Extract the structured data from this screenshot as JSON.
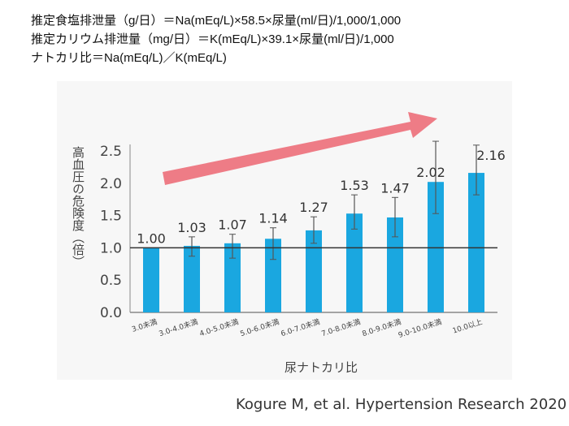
{
  "formulas": [
    "推定食塩排泄量（g/日）＝Na(mEq/L)×58.5×尿量(ml/日)/1,000/1,000",
    "推定カリウム排泄量（mg/日）＝K(mEq/L)×39.1×尿量(ml/日)/1,000",
    "ナトカリ比＝Na(mEq/L)／K(mEq/L)"
  ],
  "citation": "Kogure M, et al. Hypertension Research 2020",
  "colors": {
    "bar": "#1aa7e0",
    "arrow": "#ee7c86"
  },
  "chart_data": {
    "type": "bar",
    "title": "",
    "xlabel": "尿ナトカリ比",
    "ylabel": "高血圧の危険度（倍）",
    "ylim": [
      0,
      2.5
    ],
    "yticks": [
      "0.0",
      "0.5",
      "1.0",
      "1.5",
      "2.0",
      "2.5"
    ],
    "reference_line": 1.0,
    "categories": [
      "3.0未満",
      "3.0-4.0未満",
      "4.0-5.0未満",
      "5.0-6.0未満",
      "6.0-7.0未満",
      "7.0-8.0未満",
      "8.0-9.0未満",
      "9.0-10.0未満",
      "10.0以上"
    ],
    "values": [
      1.0,
      1.03,
      1.07,
      1.14,
      1.27,
      1.53,
      1.47,
      2.02,
      2.16
    ],
    "labels": [
      "1.00",
      "1.03",
      "1.07",
      "1.14",
      "1.27",
      "1.53",
      "1.47",
      "2.02",
      "2.16"
    ],
    "error_low": [
      1.0,
      0.87,
      0.84,
      0.82,
      1.07,
      1.29,
      1.17,
      1.53,
      1.82
    ],
    "error_high": [
      1.0,
      1.17,
      1.21,
      1.31,
      1.48,
      1.82,
      1.78,
      2.65,
      2.59
    ]
  }
}
